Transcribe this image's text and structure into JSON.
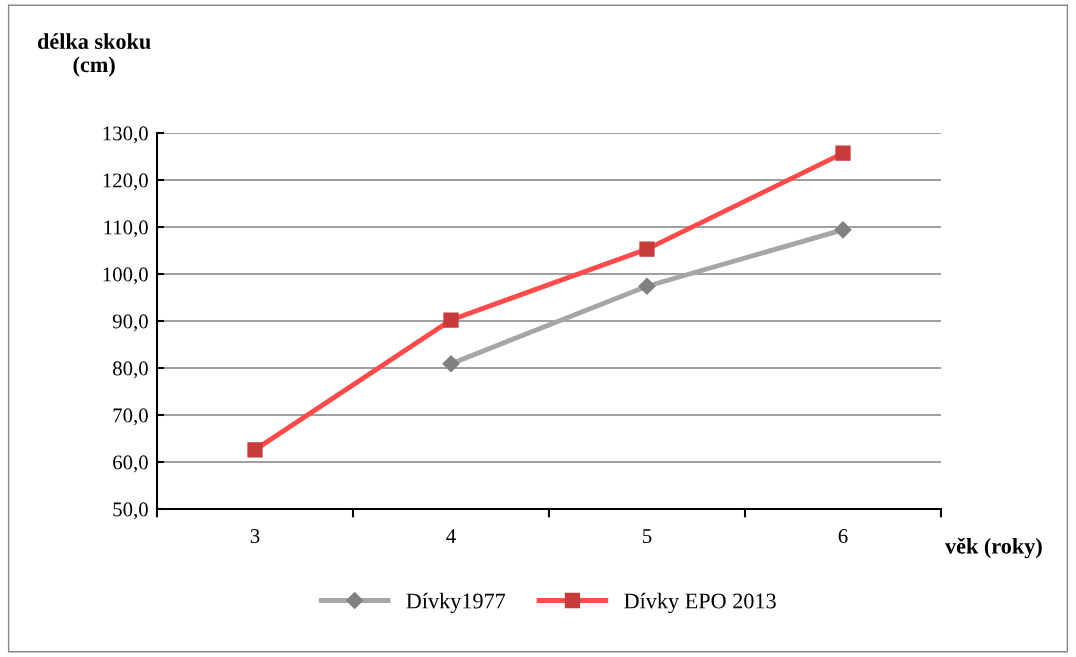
{
  "chart_data": {
    "type": "line",
    "xlabel": "věk (roky)",
    "ylabel": "délka skoku\n(cm)",
    "categories": [
      "3",
      "4",
      "5",
      "6"
    ],
    "series": [
      {
        "name": "Dívky1977",
        "color": "#a6a6a6",
        "marker": "diamond",
        "values": [
          null,
          80.9,
          97.4,
          109.4
        ]
      },
      {
        "name": "Dívky EPO 2013",
        "color": "#ff4b4b",
        "marker": "square",
        "values": [
          62.6,
          90.2,
          105.3,
          125.7
        ]
      }
    ],
    "ylim": [
      50,
      130
    ],
    "yticks": [
      {
        "value": 50,
        "label": "50,0"
      },
      {
        "value": 60,
        "label": "60,0"
      },
      {
        "value": 70,
        "label": "70,0"
      },
      {
        "value": 80,
        "label": "80,0"
      },
      {
        "value": 90,
        "label": "90,0"
      },
      {
        "value": 100,
        "label": "100,0"
      },
      {
        "value": 110,
        "label": "110,0"
      },
      {
        "value": 120,
        "label": "120,0"
      },
      {
        "value": 130,
        "label": "130,0"
      }
    ],
    "grid": "y",
    "legend": "bottom",
    "line_style": "solid"
  }
}
